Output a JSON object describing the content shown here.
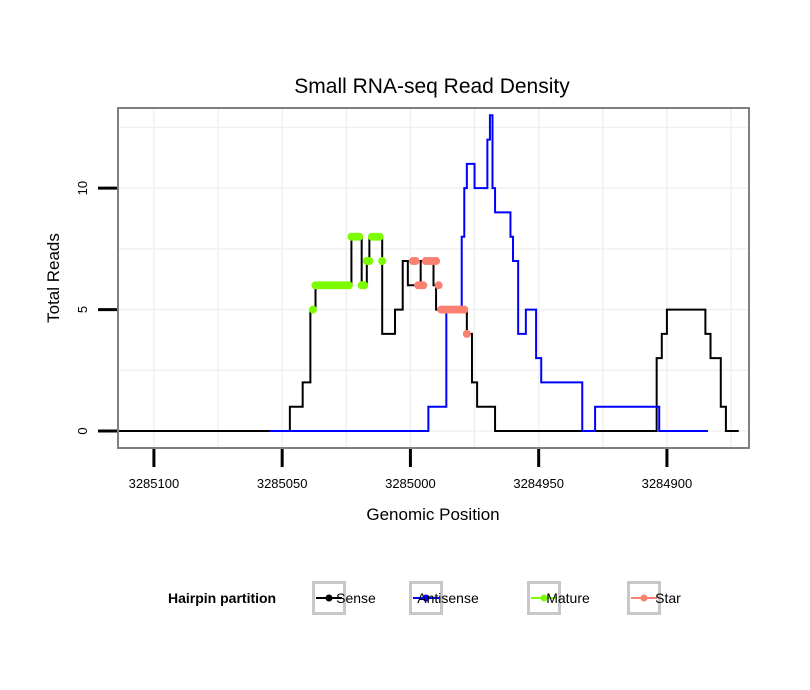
{
  "chart_data": {
    "type": "line",
    "title": "Small RNA-seq Read Density",
    "xlabel": "Genomic Position",
    "ylabel": "Total Reads",
    "xlim": [
      3285114,
      3284868
    ],
    "ylim": [
      -0.7,
      13.3
    ],
    "x_reversed": true,
    "x_ticks": [
      3285100,
      3285050,
      3285000,
      3284950,
      3284900
    ],
    "x_tick_labels": [
      "3285100",
      "3285050",
      3285000,
      "3284950",
      "3284900"
    ],
    "y_ticks": [
      0,
      5,
      10
    ],
    "y_tick_labels": [
      "0",
      "5",
      "10"
    ],
    "grid": true,
    "legend": {
      "title": "Hairpin partition",
      "position": "bottom",
      "entries": [
        "Sense",
        "Antisense",
        "Mature",
        "Star"
      ]
    },
    "colors": {
      "Sense": "#000000",
      "Antisense": "#0000ff",
      "Mature": "#7cfc00",
      "Star": "#fa8072",
      "panel_border": "#7f7f7f",
      "grid": "#f0f0f0",
      "tick": "#000000"
    },
    "series": [
      {
        "name": "Sense",
        "type": "step",
        "points": [
          [
            3285115,
            0
          ],
          [
            3285047,
            0
          ],
          [
            3285047,
            1
          ],
          [
            3285042,
            1
          ],
          [
            3285042,
            2
          ],
          [
            3285039,
            2
          ],
          [
            3285039,
            5
          ],
          [
            3285037,
            5
          ],
          [
            3285037,
            6
          ],
          [
            3285023,
            6
          ],
          [
            3285023,
            8
          ],
          [
            3285019,
            8
          ],
          [
            3285019,
            6
          ],
          [
            3285017,
            6
          ],
          [
            3285017,
            7
          ],
          [
            3285016,
            7
          ],
          [
            3285016,
            8
          ],
          [
            3285011,
            8
          ],
          [
            3285011,
            4
          ],
          [
            3285006,
            4
          ],
          [
            3285006,
            5
          ],
          [
            3285003,
            5
          ],
          [
            3285003,
            7
          ],
          [
            3285001,
            7
          ],
          [
            3285001,
            6
          ],
          [
            3284996,
            6
          ],
          [
            3284996,
            7
          ],
          [
            3284991,
            7
          ],
          [
            3284991,
            6
          ],
          [
            3284990,
            6
          ],
          [
            3284990,
            5
          ],
          [
            3284978,
            5
          ],
          [
            3284978,
            4
          ],
          [
            3284976,
            4
          ],
          [
            3284976,
            2
          ],
          [
            3284974,
            2
          ],
          [
            3284974,
            1
          ],
          [
            3284967,
            1
          ],
          [
            3284967,
            0
          ],
          [
            3284904,
            0
          ],
          [
            3284904,
            3
          ],
          [
            3284902,
            3
          ],
          [
            3284902,
            4
          ],
          [
            3284900,
            4
          ],
          [
            3284900,
            5
          ],
          [
            3284885,
            5
          ],
          [
            3284885,
            4
          ],
          [
            3284883,
            4
          ],
          [
            3284883,
            3
          ],
          [
            3284879,
            3
          ],
          [
            3284879,
            1
          ],
          [
            3284877,
            1
          ],
          [
            3284877,
            0
          ],
          [
            3284872,
            0
          ]
        ]
      },
      {
        "name": "Antisense",
        "type": "step",
        "points": [
          [
            3285055,
            0
          ],
          [
            3284993,
            0
          ],
          [
            3284993,
            1
          ],
          [
            3284986,
            1
          ],
          [
            3284986,
            5
          ],
          [
            3284980,
            5
          ],
          [
            3284980,
            8
          ],
          [
            3284979,
            8
          ],
          [
            3284979,
            10
          ],
          [
            3284978,
            10
          ],
          [
            3284978,
            11
          ],
          [
            3284975,
            11
          ],
          [
            3284975,
            10
          ],
          [
            3284970,
            10
          ],
          [
            3284970,
            12
          ],
          [
            3284969,
            12
          ],
          [
            3284969,
            13
          ],
          [
            3284968,
            13
          ],
          [
            3284968,
            10
          ],
          [
            3284967,
            10
          ],
          [
            3284967,
            9
          ],
          [
            3284961,
            9
          ],
          [
            3284961,
            8
          ],
          [
            3284960,
            8
          ],
          [
            3284960,
            7
          ],
          [
            3284958,
            7
          ],
          [
            3284958,
            4
          ],
          [
            3284955,
            4
          ],
          [
            3284955,
            5
          ],
          [
            3284951,
            5
          ],
          [
            3284951,
            3
          ],
          [
            3284949,
            3
          ],
          [
            3284949,
            2
          ],
          [
            3284933,
            2
          ],
          [
            3284933,
            0
          ],
          [
            3284928,
            0
          ],
          [
            3284928,
            1
          ],
          [
            3284903,
            1
          ],
          [
            3284903,
            0
          ],
          [
            3284884,
            0
          ]
        ]
      },
      {
        "name": "Mature",
        "type": "points",
        "points": [
          [
            3285038,
            5
          ],
          [
            3285037,
            6
          ],
          [
            3285036,
            6
          ],
          [
            3285035,
            6
          ],
          [
            3285034,
            6
          ],
          [
            3285033,
            6
          ],
          [
            3285032,
            6
          ],
          [
            3285031,
            6
          ],
          [
            3285030,
            6
          ],
          [
            3285029,
            6
          ],
          [
            3285028,
            6
          ],
          [
            3285027,
            6
          ],
          [
            3285026,
            6
          ],
          [
            3285025,
            6
          ],
          [
            3285024,
            6
          ],
          [
            3285023,
            8
          ],
          [
            3285022,
            8
          ],
          [
            3285021,
            8
          ],
          [
            3285020,
            8
          ],
          [
            3285019,
            6
          ],
          [
            3285018,
            6
          ],
          [
            3285017,
            7
          ],
          [
            3285016,
            7
          ],
          [
            3285015,
            8
          ],
          [
            3285014,
            8
          ],
          [
            3285013,
            8
          ],
          [
            3285012,
            8
          ],
          [
            3285011,
            7
          ]
        ]
      },
      {
        "name": "Star",
        "type": "points",
        "points": [
          [
            3284999,
            7
          ],
          [
            3284998,
            7
          ],
          [
            3284997,
            6
          ],
          [
            3284996,
            6
          ],
          [
            3284995,
            6
          ],
          [
            3284994,
            7
          ],
          [
            3284993,
            7
          ],
          [
            3284992,
            7
          ],
          [
            3284991,
            7
          ],
          [
            3284990,
            7
          ],
          [
            3284989,
            6
          ],
          [
            3284988,
            5
          ],
          [
            3284987,
            5
          ],
          [
            3284986,
            5
          ],
          [
            3284985,
            5
          ],
          [
            3284984,
            5
          ],
          [
            3284983,
            5
          ],
          [
            3284982,
            5
          ],
          [
            3284981,
            5
          ],
          [
            3284980,
            5
          ],
          [
            3284979,
            5
          ],
          [
            3284978,
            4
          ]
        ]
      }
    ]
  }
}
